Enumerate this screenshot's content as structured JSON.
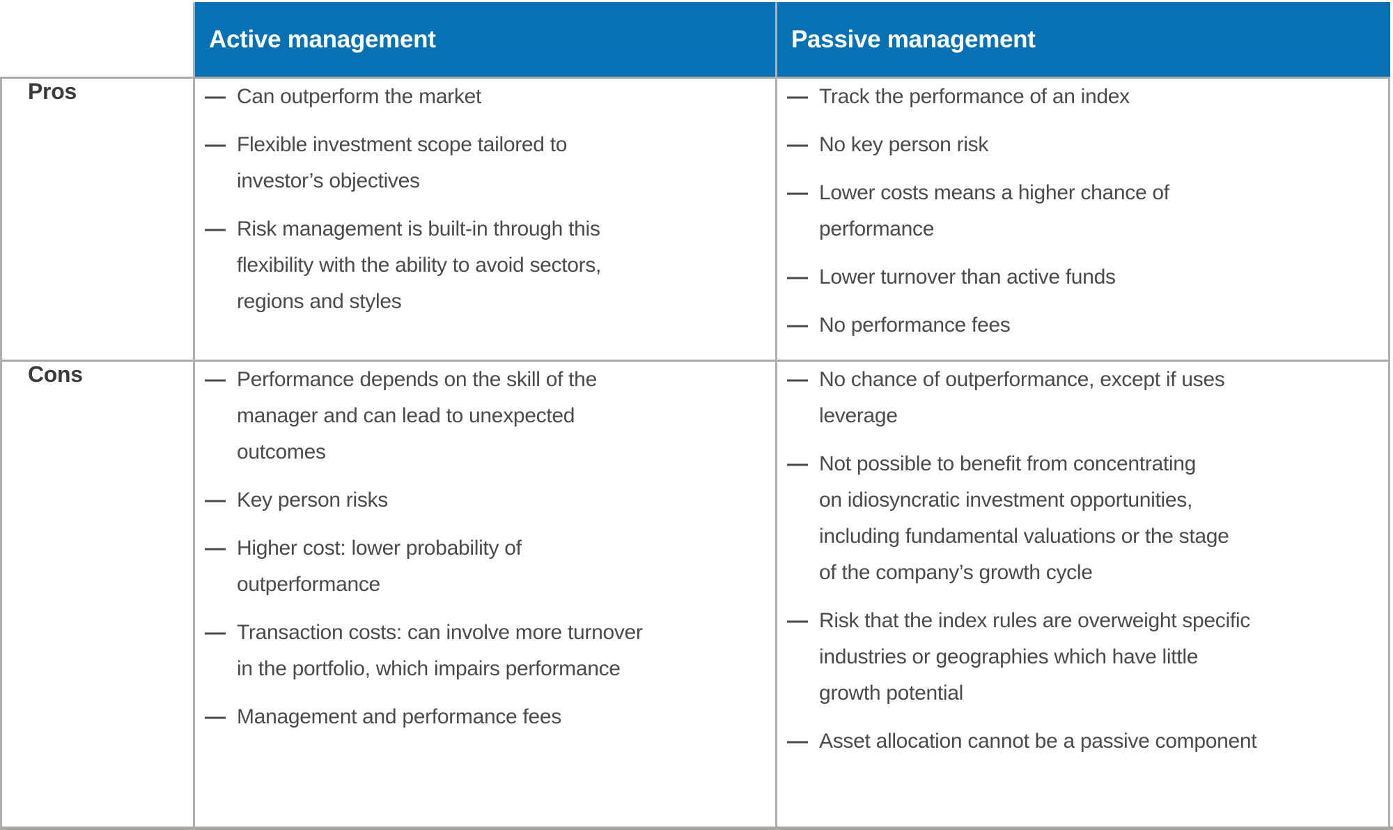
{
  "bullet_glyph": "—",
  "colors": {
    "header_bg": "#0671b4",
    "header_text": "#ffffff",
    "body_text": "#4a4a49",
    "pros_row_bg": "#fdfdfd",
    "cons_row_bg": "#f1f1ef",
    "border_gray": "#b1b0ad"
  },
  "table": {
    "columns": [
      {
        "label": "Active management"
      },
      {
        "label": "Passive management"
      }
    ],
    "rows": [
      {
        "label": "Pros",
        "active": [
          [
            "Can outperform the market"
          ],
          [
            "Flexible investment scope tailored to",
            "investor’s objectives"
          ],
          [
            "Risk management is built-in through this",
            "flexibility with the ability to avoid sectors,",
            "regions and styles"
          ]
        ],
        "passive": [
          [
            "Track the performance of an index"
          ],
          [
            "No key person risk"
          ],
          [
            "Lower costs means a higher chance of",
            "performance"
          ],
          [
            "Lower turnover than active funds"
          ],
          [
            "No performance fees"
          ]
        ]
      },
      {
        "label": "Cons",
        "active": [
          [
            "Performance depends on the skill of the",
            "manager and can lead to unexpected",
            "outcomes"
          ],
          [
            "Key person risks"
          ],
          [
            "Higher cost: lower probability of",
            "outperformance"
          ],
          [
            "Transaction costs: can involve more turnover",
            "in the portfolio, which impairs performance"
          ],
          [
            "Management and performance fees"
          ]
        ],
        "passive": [
          [
            "No chance of outperformance, except if uses",
            "leverage"
          ],
          [
            "Not possible to benefit from concentrating",
            "on idiosyncratic investment opportunities,",
            "including fundamental valuations or the stage",
            "of the company’s growth cycle"
          ],
          [
            "Risk that the index rules are overweight specific",
            "industries or geographies which have little",
            "growth potential"
          ],
          [
            "Asset allocation cannot be a passive component"
          ]
        ]
      }
    ]
  }
}
